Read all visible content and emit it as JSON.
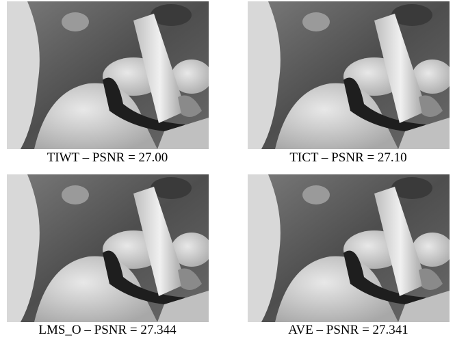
{
  "panels": [
    {
      "caption": "TIWT – PSNR = 27.00"
    },
    {
      "caption": "TICT – PSNR = 27.10"
    },
    {
      "caption": "LMS_O – PSNR = 27.344"
    },
    {
      "caption": "AVE – PSNR = 27.341"
    }
  ]
}
